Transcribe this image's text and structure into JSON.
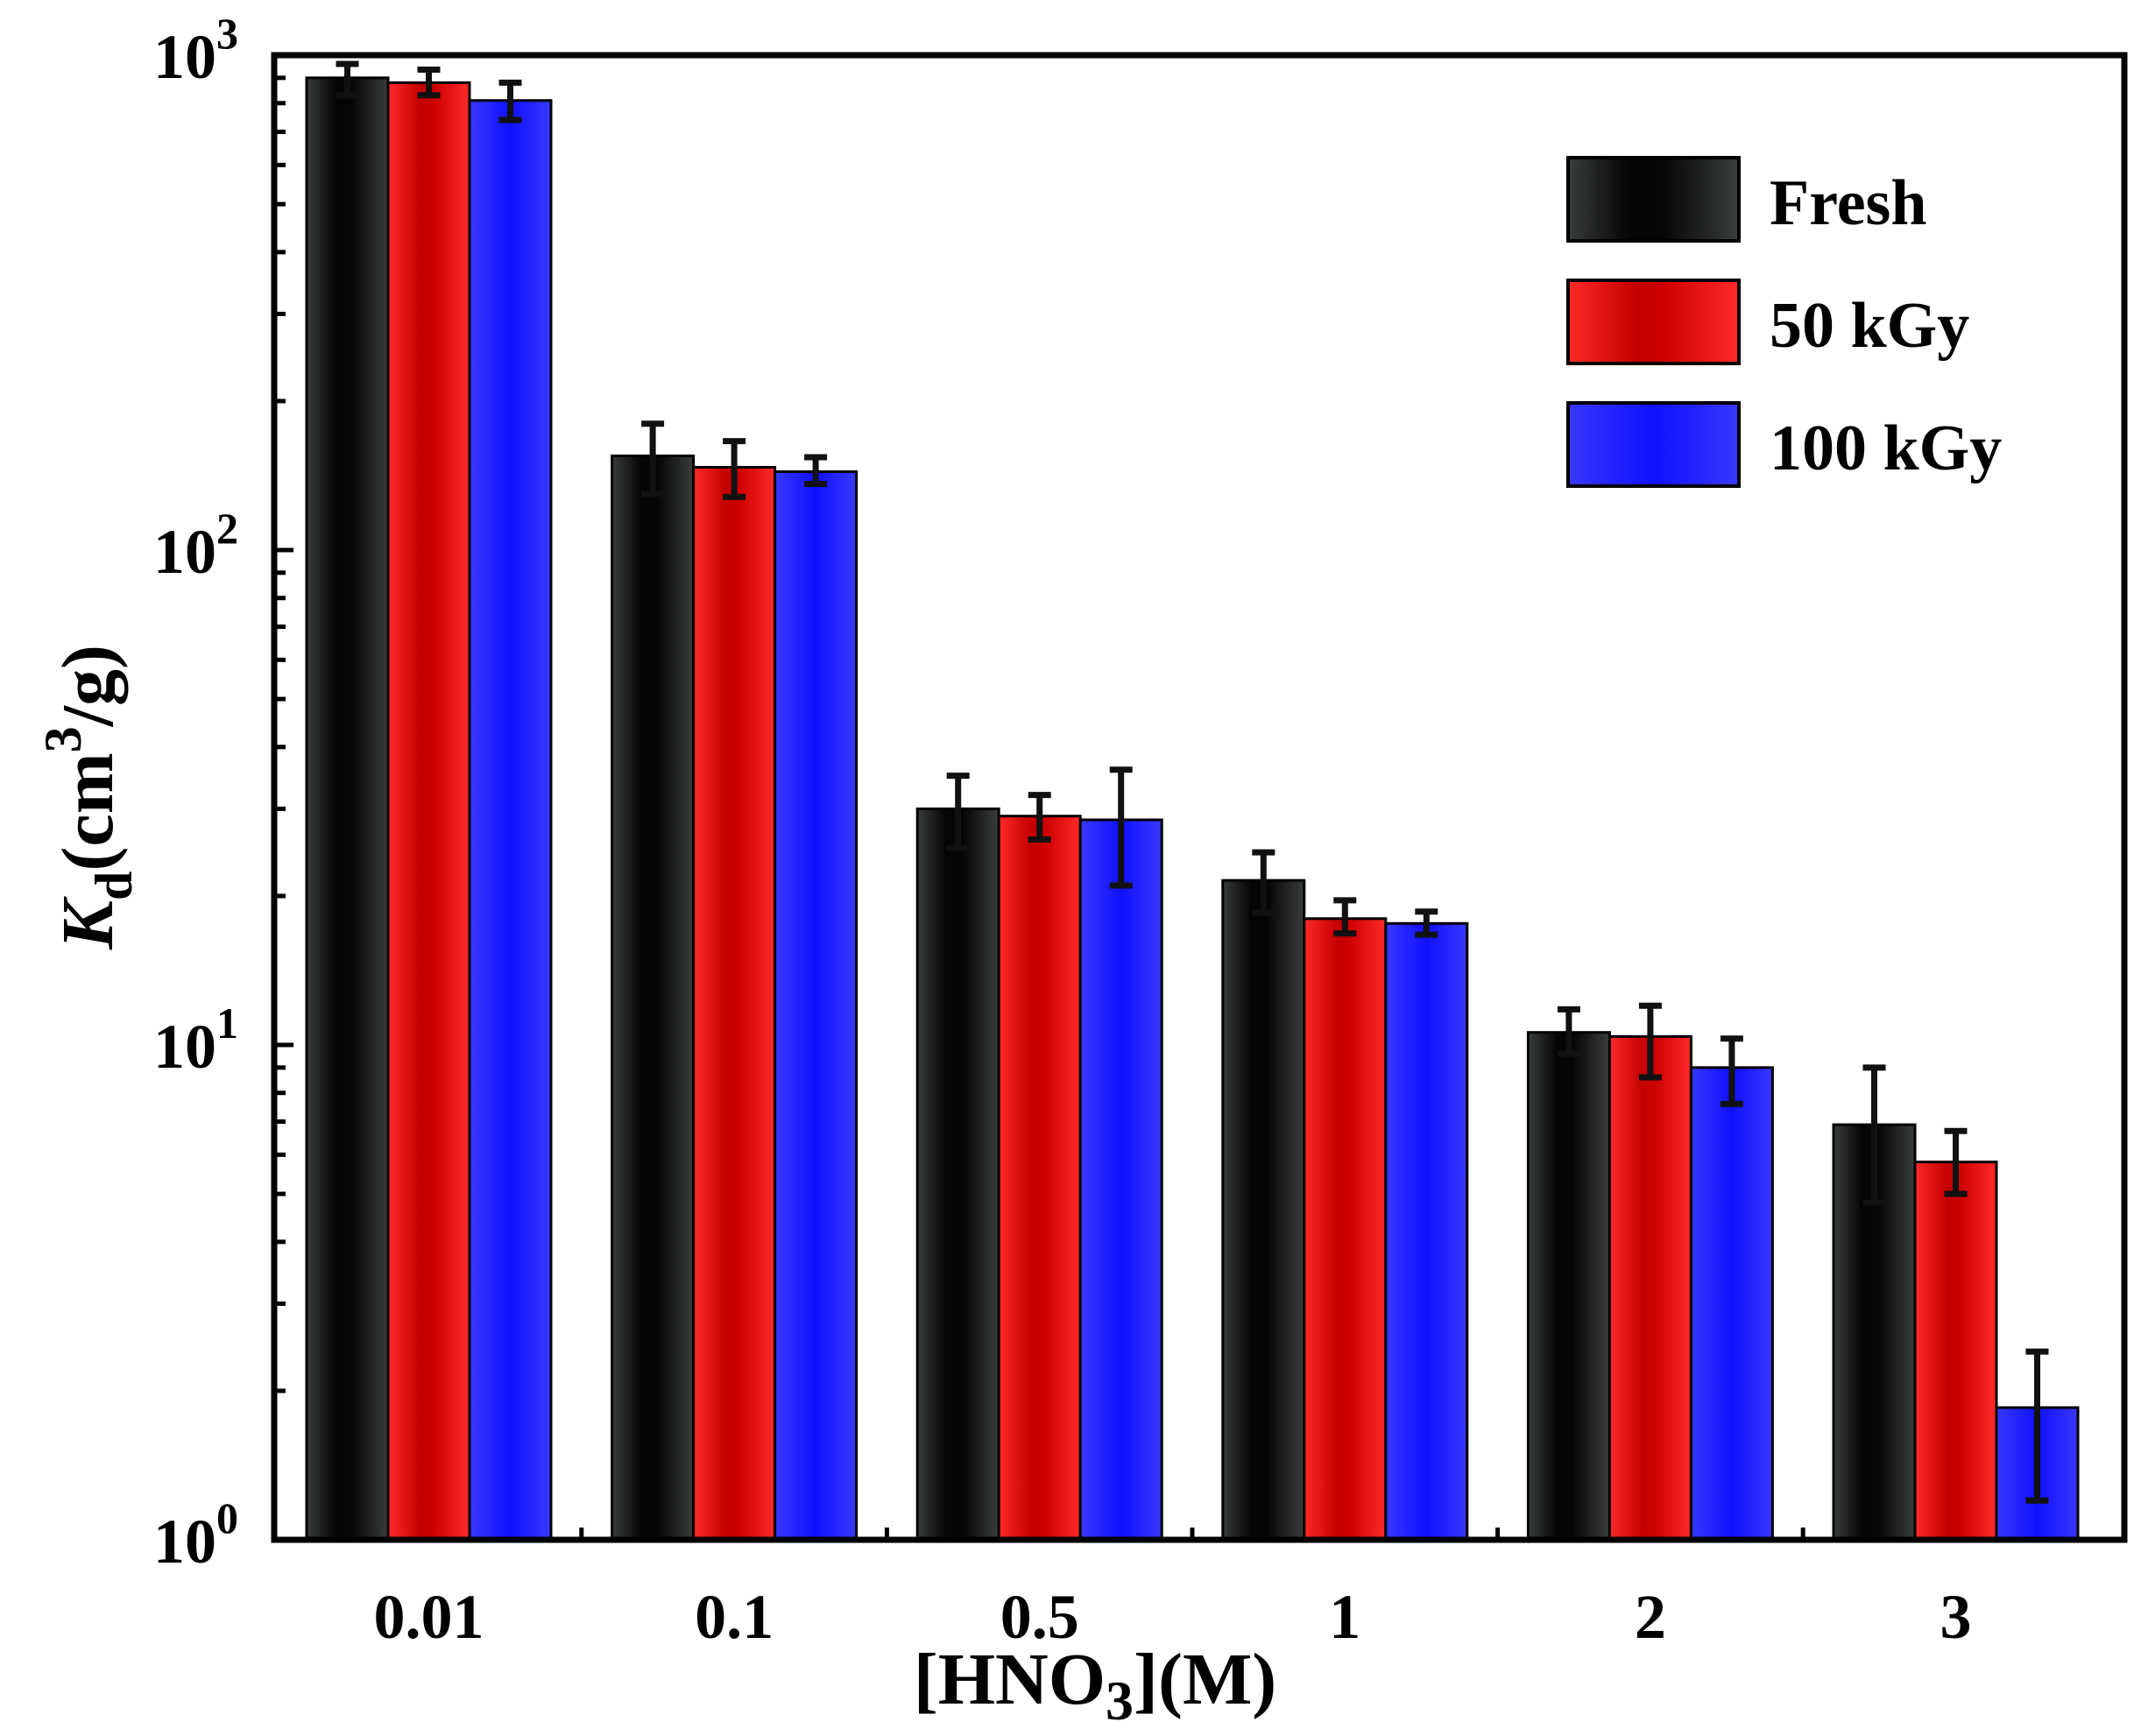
{
  "chart_data": {
    "type": "bar",
    "yscale": "log",
    "ylim": [
      1,
      1000
    ],
    "categories": [
      "0.01",
      "0.1",
      "0.5",
      "1",
      "2",
      "3"
    ],
    "xlabel_parts": {
      "prefix": "[HNO",
      "sub": "3",
      "suffix": "](M)"
    },
    "ylabel_parts": {
      "main": "K",
      "sub": "d",
      "unit_prefix": "(cm",
      "sup": "3",
      "unit_suffix": "/g)"
    },
    "y_ticks": [
      {
        "base": "10",
        "exp": "0",
        "value": 1
      },
      {
        "base": "10",
        "exp": "1",
        "value": 10
      },
      {
        "base": "10",
        "exp": "2",
        "value": 100
      },
      {
        "base": "10",
        "exp": "3",
        "value": 1000
      }
    ],
    "series": [
      {
        "name": "Fresh",
        "color": "#2b2e2e",
        "values": [
          900,
          155,
          30,
          21.5,
          10.6,
          6.9
        ],
        "err_low": [
          830,
          130,
          25,
          18.5,
          9.6,
          4.8
        ],
        "err_high": [
          960,
          180,
          35,
          24.5,
          11.8,
          9.0
        ]
      },
      {
        "name": "50 kGy",
        "color": "#ff1a1a",
        "values": [
          880,
          147,
          29,
          18,
          10.4,
          5.8
        ],
        "err_low": [
          830,
          128,
          26,
          16.8,
          8.6,
          5.0
        ],
        "err_high": [
          935,
          166,
          32,
          19.6,
          12.0,
          6.7
        ]
      },
      {
        "name": "100 kGy",
        "color": "#2a2aff",
        "values": [
          810,
          144,
          28.5,
          17.6,
          9.0,
          1.85
        ],
        "err_low": [
          740,
          136,
          21,
          16.7,
          7.6,
          1.2
        ],
        "err_high": [
          880,
          154,
          36,
          18.6,
          10.3,
          2.4
        ]
      }
    ],
    "legend_position": "top-right"
  }
}
